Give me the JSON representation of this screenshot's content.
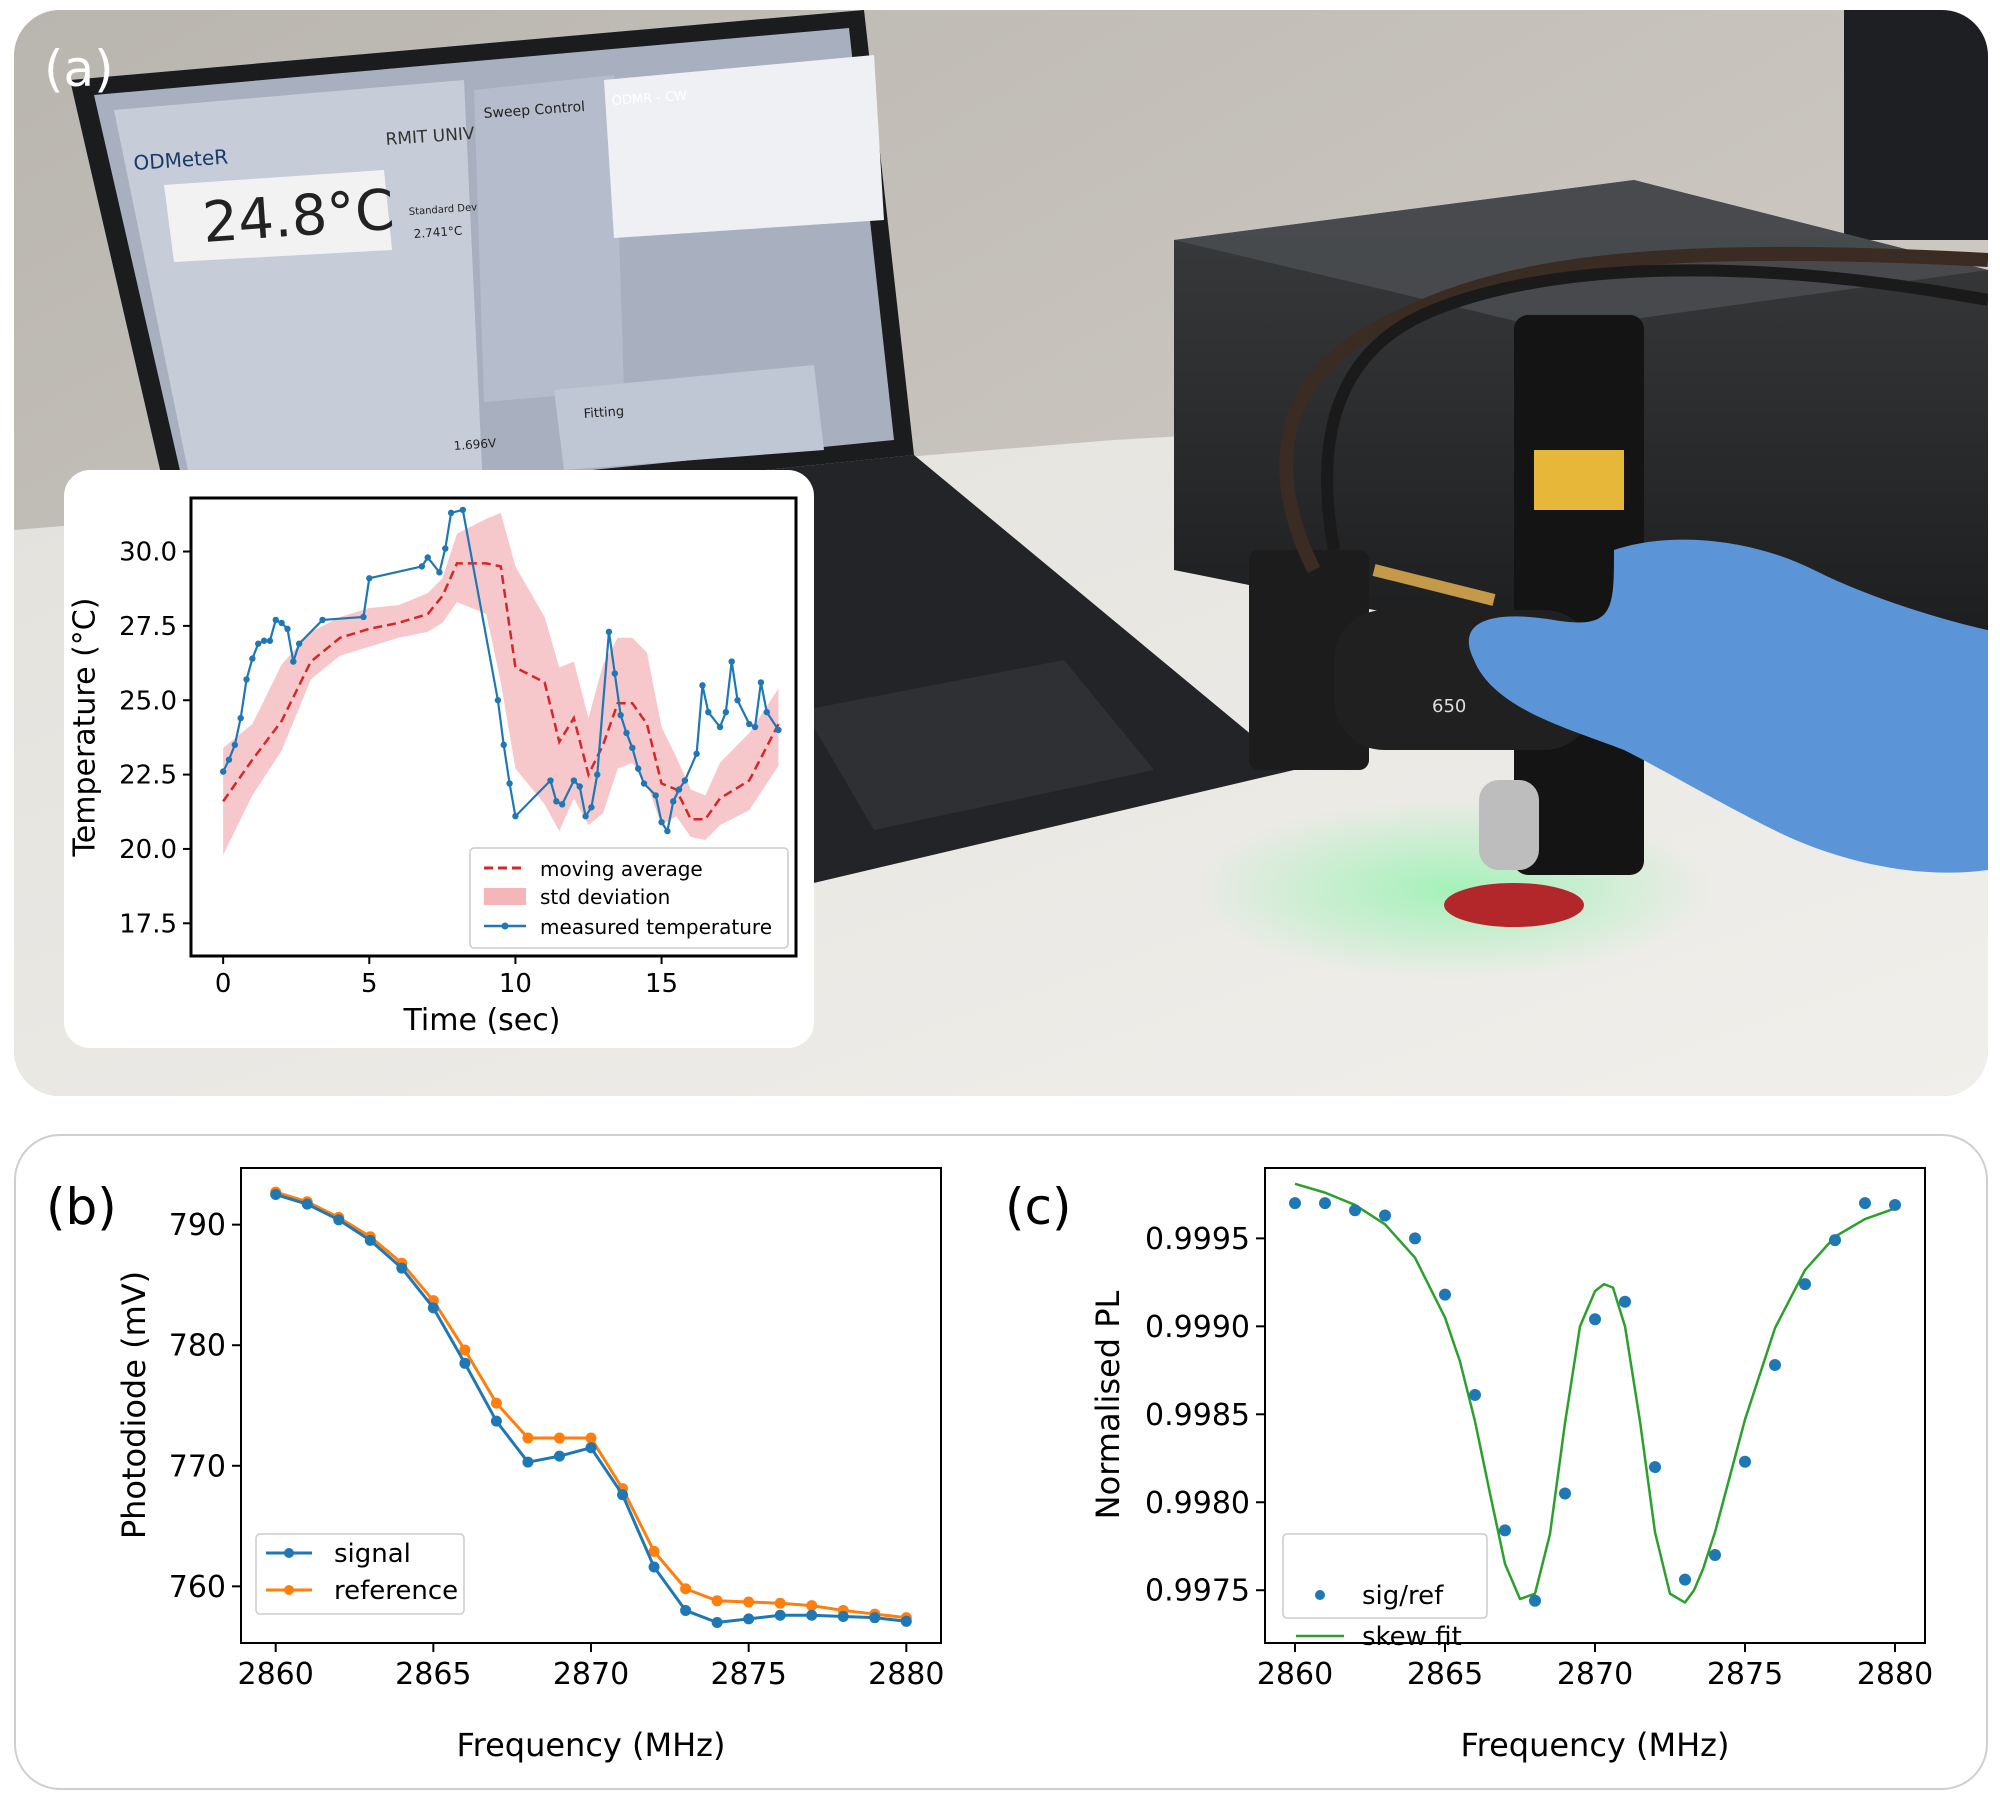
{
  "figure": {
    "panel_labels": {
      "a": "(a)",
      "b": "(b)",
      "c": "(c)"
    },
    "photo": {
      "software_title": "ODMeteR",
      "temperature_readout": "24.8°C",
      "logo_text": "RMIT UNIVERSITY",
      "sweep_control_title": "Sweep Control",
      "odmr_title": "ODMR - CW",
      "fitting_title": "Fitting",
      "std_dev_label": "Standard Deviation",
      "std_dev_value": "2.741°C",
      "voltage_readout": "1.696V",
      "objective_label": "650"
    }
  },
  "colors": {
    "blue": "#1f77b4",
    "orange": "#ff7f0e",
    "green": "#2ca02c",
    "red": "#d62728",
    "pink_band": "#f4b6b9"
  },
  "chart_data": [
    {
      "id": "a",
      "type": "line",
      "xlabel": "Time (sec)",
      "ylabel": "Temperature (°C)",
      "xlim": [
        -1.1,
        19.6
      ],
      "ylim": [
        16.4,
        31.8
      ],
      "xticks": [
        0,
        5,
        10,
        15
      ],
      "yticks": [
        17.5,
        20.0,
        22.5,
        25.0,
        27.5,
        30.0
      ],
      "ytick_labels": [
        "17.5",
        "20.0",
        "22.5",
        "25.0",
        "27.5",
        "30.0"
      ],
      "legend_position": "lower right",
      "legend": [
        "moving average",
        "std deviation",
        "measured temperature"
      ],
      "series": [
        {
          "name": "measured temperature",
          "style": "line-markers",
          "x": [
            0,
            0.2,
            0.4,
            0.6,
            0.8,
            1.0,
            1.2,
            1.4,
            1.6,
            1.8,
            2.0,
            2.2,
            2.4,
            2.6,
            3.4,
            4.8,
            5.0,
            6.8,
            7.0,
            7.4,
            7.6,
            7.8,
            8.2,
            9.4,
            9.6,
            9.8,
            10.0,
            11.2,
            11.4,
            11.6,
            12.0,
            12.2,
            12.4,
            12.6,
            12.8,
            13.2,
            13.4,
            13.6,
            13.8,
            14.0,
            14.2,
            14.4,
            14.8,
            15.0,
            15.2,
            15.4,
            15.6,
            15.8,
            16.2,
            16.4,
            16.6,
            17.0,
            17.2,
            17.4,
            17.6,
            18.0,
            18.2,
            18.4,
            18.6,
            19.0
          ],
          "y": [
            22.6,
            23.0,
            23.5,
            24.4,
            25.7,
            26.4,
            26.9,
            27.0,
            27.0,
            27.7,
            27.6,
            27.4,
            26.3,
            26.9,
            27.7,
            27.8,
            29.1,
            29.5,
            29.8,
            29.3,
            30.1,
            31.3,
            31.4,
            25.0,
            23.5,
            22.2,
            21.1,
            22.3,
            21.6,
            21.5,
            22.3,
            22.1,
            21.1,
            21.4,
            22.5,
            27.3,
            25.9,
            24.5,
            23.9,
            23.4,
            22.7,
            22.2,
            21.8,
            20.9,
            20.6,
            21.6,
            22.0,
            22.3,
            23.2,
            25.5,
            24.6,
            24.1,
            24.6,
            26.3,
            25.0,
            24.2,
            24.1,
            25.6,
            24.6,
            24.0
          ]
        },
        {
          "name": "moving average",
          "style": "dashed",
          "x": [
            0,
            1,
            2,
            3,
            4,
            5,
            6,
            7,
            7.5,
            8,
            9,
            9.5,
            10,
            11,
            11.5,
            12,
            12.5,
            13,
            13.5,
            14,
            14.5,
            15,
            15.5,
            16,
            16.5,
            17,
            18,
            19
          ],
          "y": [
            21.6,
            23.0,
            24.3,
            26.3,
            27.1,
            27.4,
            27.6,
            27.9,
            28.5,
            29.6,
            29.6,
            29.5,
            26.1,
            25.6,
            23.6,
            24.4,
            22.5,
            23.5,
            24.9,
            24.9,
            24.2,
            22.2,
            22.0,
            21.0,
            21.0,
            21.7,
            22.3,
            24.2
          ]
        },
        {
          "name": "std deviation",
          "style": "band",
          "x": [
            0,
            1,
            2,
            3,
            4,
            5,
            6,
            7,
            7.5,
            8,
            9,
            9.5,
            10,
            11,
            11.5,
            12,
            12.5,
            13,
            13.5,
            14,
            14.5,
            15,
            15.5,
            16,
            16.5,
            17,
            18,
            19
          ],
          "y_low": [
            19.8,
            21.8,
            23.3,
            25.7,
            26.5,
            26.8,
            27.1,
            27.3,
            27.6,
            28.3,
            27.9,
            25.6,
            22.7,
            21.5,
            20.6,
            21.7,
            20.8,
            21.2,
            22.7,
            22.9,
            22.2,
            20.8,
            21.1,
            20.4,
            20.3,
            20.8,
            21.3,
            22.8
          ],
          "y_high": [
            23.4,
            24.2,
            26.2,
            27.3,
            27.8,
            28.1,
            28.2,
            28.6,
            29.1,
            30.6,
            31.1,
            31.3,
            29.5,
            27.8,
            26.1,
            26.3,
            24.4,
            26.2,
            27.1,
            27.1,
            26.6,
            24.1,
            23.1,
            22.0,
            21.8,
            22.9,
            23.9,
            25.4
          ]
        }
      ]
    },
    {
      "id": "b",
      "type": "line",
      "xlabel": "Frequency (MHz)",
      "ylabel": "Photodiode (mV)",
      "xlim": [
        2858.9,
        2881.1
      ],
      "ylim": [
        755.3,
        794.7
      ],
      "xticks": [
        2860,
        2865,
        2870,
        2875,
        2880
      ],
      "yticks": [
        760,
        770,
        780,
        790
      ],
      "legend_position": "lower left",
      "legend": [
        "signal",
        "reference"
      ],
      "series": [
        {
          "name": "signal",
          "x": [
            2860,
            2861,
            2862,
            2863,
            2864,
            2865,
            2866,
            2867,
            2868,
            2869,
            2870,
            2871,
            2872,
            2873,
            2874,
            2875,
            2876,
            2877,
            2878,
            2879,
            2880
          ],
          "y": [
            792.5,
            791.7,
            790.4,
            788.7,
            786.4,
            783.1,
            778.5,
            773.7,
            770.3,
            770.8,
            771.5,
            767.6,
            761.6,
            758.0,
            757.0,
            757.3,
            757.6,
            757.6,
            757.5,
            757.4,
            757.1
          ]
        },
        {
          "name": "reference",
          "x": [
            2860,
            2861,
            2862,
            2863,
            2864,
            2865,
            2866,
            2867,
            2868,
            2869,
            2870,
            2871,
            2872,
            2873,
            2874,
            2875,
            2876,
            2877,
            2878,
            2879,
            2880
          ],
          "y": [
            792.7,
            791.9,
            790.6,
            789.0,
            786.8,
            783.7,
            779.6,
            775.2,
            772.3,
            772.3,
            772.3,
            768.1,
            762.9,
            759.8,
            758.8,
            758.7,
            758.6,
            758.4,
            758.0,
            757.7,
            757.4
          ]
        }
      ]
    },
    {
      "id": "c",
      "type": "scatter",
      "xlabel": "Frequency (MHz)",
      "ylabel": "Normalised PL",
      "xlim": [
        2859.0,
        2881.0
      ],
      "ylim": [
        0.9972,
        0.9999
      ],
      "xticks": [
        2860,
        2865,
        2870,
        2875,
        2880
      ],
      "yticks": [
        0.9975,
        0.998,
        0.9985,
        0.999,
        0.9995
      ],
      "ytick_labels": [
        "0.9975",
        "0.9980",
        "0.9985",
        "0.9990",
        "0.9995"
      ],
      "legend_position": "lower left",
      "legend": [
        "sig/ref",
        "skew fit"
      ],
      "series": [
        {
          "name": "sig/ref",
          "style": "points",
          "x": [
            2860,
            2861,
            2862,
            2863,
            2864,
            2865,
            2866,
            2867,
            2868,
            2869,
            2870,
            2871,
            2872,
            2873,
            2874,
            2875,
            2876,
            2877,
            2878,
            2879,
            2880
          ],
          "y": [
            0.9997,
            0.9997,
            0.99966,
            0.99963,
            0.9995,
            0.99918,
            0.99861,
            0.99784,
            0.99744,
            0.99805,
            0.99904,
            0.99914,
            0.9982,
            0.99756,
            0.9977,
            0.99823,
            0.99878,
            0.99924,
            0.99949,
            0.9997,
            0.99969
          ]
        },
        {
          "name": "skew fit",
          "style": "line",
          "x": [
            2860,
            2861,
            2862,
            2863,
            2864,
            2865,
            2865.5,
            2866,
            2866.5,
            2867,
            2867.5,
            2868,
            2868.5,
            2869,
            2869.5,
            2870,
            2870.3,
            2870.6,
            2871,
            2871.5,
            2872,
            2872.5,
            2873,
            2873.3,
            2873.6,
            2874,
            2874.5,
            2875,
            2876,
            2877,
            2878,
            2879,
            2880
          ],
          "y": [
            0.99981,
            0.99976,
            0.99969,
            0.99958,
            0.99939,
            0.99905,
            0.9988,
            0.99846,
            0.99805,
            0.99765,
            0.99745,
            0.99748,
            0.99782,
            0.99845,
            0.999,
            0.9992,
            0.99924,
            0.99922,
            0.999,
            0.99846,
            0.99783,
            0.99748,
            0.99743,
            0.9975,
            0.99762,
            0.99783,
            0.99815,
            0.99847,
            0.99899,
            0.99932,
            0.99951,
            0.99961,
            0.99967
          ]
        }
      ]
    }
  ]
}
